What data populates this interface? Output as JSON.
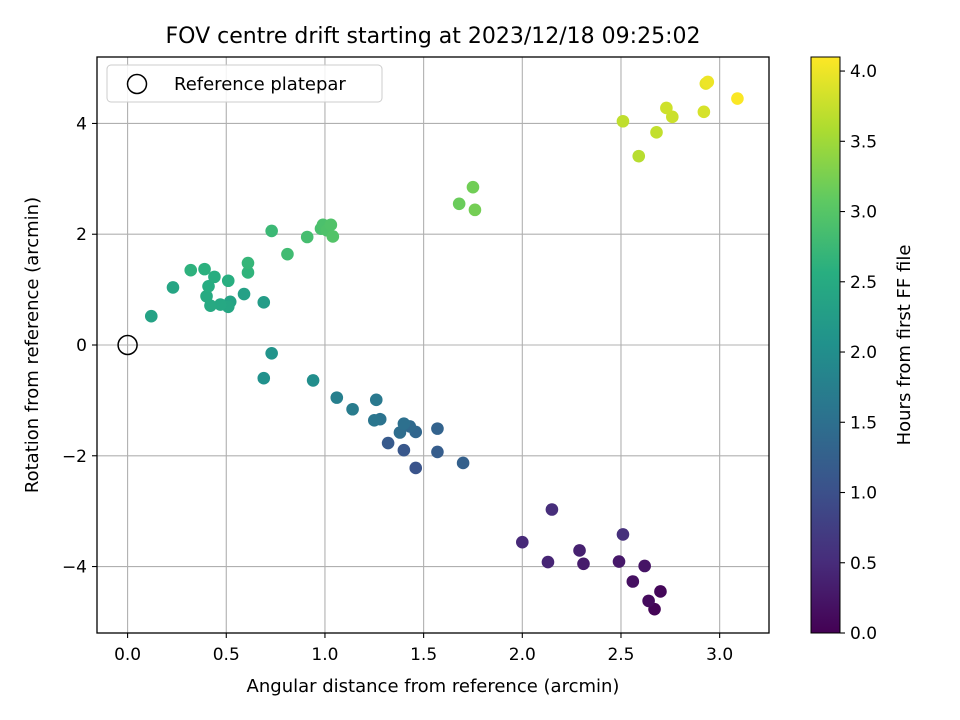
{
  "chart_data": {
    "type": "scatter",
    "title": "FOV centre drift starting at 2023/12/18 09:25:02",
    "xlabel": "Angular distance from reference (arcmin)",
    "ylabel": "Rotation from reference (arcmin)",
    "xlim": [
      -0.155,
      3.25
    ],
    "ylim": [
      -5.2,
      5.2
    ],
    "xticks": [
      0.0,
      0.5,
      1.0,
      1.5,
      2.0,
      2.5,
      3.0
    ],
    "xtick_labels": [
      "0.0",
      "0.5",
      "1.0",
      "1.5",
      "2.0",
      "2.5",
      "3.0"
    ],
    "yticks": [
      -4,
      -2,
      0,
      2,
      4
    ],
    "ytick_labels": [
      "−4",
      "−2",
      "0",
      "2",
      "4"
    ],
    "grid": true,
    "colormap": "viridis",
    "colormap_stops": [
      "#440154",
      "#472d7b",
      "#3b528b",
      "#2c728e",
      "#21918c",
      "#28ae80",
      "#5ec962",
      "#addc30",
      "#fde725"
    ],
    "colorbar": {
      "label": "Hours from first FF file",
      "range": [
        0.0,
        4.1
      ],
      "ticks": [
        0.0,
        0.5,
        1.0,
        1.5,
        2.0,
        2.5,
        3.0,
        3.5,
        4.0
      ],
      "tick_labels": [
        "0.0",
        "0.5",
        "1.0",
        "1.5",
        "2.0",
        "2.5",
        "3.0",
        "3.5",
        "4.0"
      ]
    },
    "legend": {
      "placement": "upper-left",
      "entries": [
        {
          "label": "Reference platepar",
          "marker": "open-circle"
        }
      ]
    },
    "reference_point": {
      "x": 0.0,
      "y": 0.0
    },
    "points": [
      {
        "x": 2.67,
        "y": -4.77,
        "c": 0.03
      },
      {
        "x": 2.7,
        "y": -4.45,
        "c": 0.07
      },
      {
        "x": 2.64,
        "y": -4.62,
        "c": 0.12
      },
      {
        "x": 2.56,
        "y": -4.27,
        "c": 0.17
      },
      {
        "x": 2.62,
        "y": -3.99,
        "c": 0.22
      },
      {
        "x": 2.49,
        "y": -3.91,
        "c": 0.27
      },
      {
        "x": 2.31,
        "y": -3.95,
        "c": 0.32
      },
      {
        "x": 2.29,
        "y": -3.71,
        "c": 0.37
      },
      {
        "x": 2.13,
        "y": -3.92,
        "c": 0.42
      },
      {
        "x": 2.0,
        "y": -3.56,
        "c": 0.47
      },
      {
        "x": 2.15,
        "y": -2.97,
        "c": 0.52
      },
      {
        "x": 2.51,
        "y": -3.42,
        "c": 0.56
      },
      {
        "x": 1.46,
        "y": -2.22,
        "c": 1.05
      },
      {
        "x": 1.4,
        "y": -1.9,
        "c": 1.1
      },
      {
        "x": 1.32,
        "y": -1.77,
        "c": 1.15
      },
      {
        "x": 1.57,
        "y": -1.93,
        "c": 1.2
      },
      {
        "x": 1.7,
        "y": -2.13,
        "c": 1.25
      },
      {
        "x": 1.57,
        "y": -1.51,
        "c": 1.3
      },
      {
        "x": 1.46,
        "y": -1.57,
        "c": 1.35
      },
      {
        "x": 1.43,
        "y": -1.47,
        "c": 1.4
      },
      {
        "x": 1.38,
        "y": -1.58,
        "c": 1.45
      },
      {
        "x": 1.4,
        "y": -1.42,
        "c": 1.5
      },
      {
        "x": 1.28,
        "y": -1.34,
        "c": 1.55
      },
      {
        "x": 1.25,
        "y": -1.36,
        "c": 1.6
      },
      {
        "x": 1.26,
        "y": -0.99,
        "c": 1.65
      },
      {
        "x": 1.14,
        "y": -1.16,
        "c": 1.7
      },
      {
        "x": 1.06,
        "y": -0.95,
        "c": 1.75
      },
      {
        "x": 0.94,
        "y": -0.64,
        "c": 2.0
      },
      {
        "x": 0.69,
        "y": -0.6,
        "c": 2.05
      },
      {
        "x": 0.73,
        "y": -0.15,
        "c": 2.1
      },
      {
        "x": 0.69,
        "y": 0.77,
        "c": 2.25
      },
      {
        "x": 0.59,
        "y": 0.92,
        "c": 2.32
      },
      {
        "x": 0.52,
        "y": 0.78,
        "c": 2.37
      },
      {
        "x": 0.51,
        "y": 0.69,
        "c": 2.42
      },
      {
        "x": 0.47,
        "y": 0.73,
        "c": 2.45
      },
      {
        "x": 0.42,
        "y": 0.71,
        "c": 2.48
      },
      {
        "x": 0.4,
        "y": 0.88,
        "c": 2.5
      },
      {
        "x": 0.41,
        "y": 1.06,
        "c": 2.52
      },
      {
        "x": 0.44,
        "y": 1.23,
        "c": 2.55
      },
      {
        "x": 0.51,
        "y": 1.16,
        "c": 2.57
      },
      {
        "x": 0.39,
        "y": 1.37,
        "c": 2.6
      },
      {
        "x": 0.32,
        "y": 1.35,
        "c": 2.62
      },
      {
        "x": 0.23,
        "y": 1.04,
        "c": 2.4
      },
      {
        "x": 0.12,
        "y": 0.52,
        "c": 2.35
      },
      {
        "x": 0.61,
        "y": 1.31,
        "c": 2.65
      },
      {
        "x": 0.61,
        "y": 1.48,
        "c": 2.7
      },
      {
        "x": 0.73,
        "y": 2.06,
        "c": 2.75
      },
      {
        "x": 0.81,
        "y": 1.64,
        "c": 2.8
      },
      {
        "x": 0.91,
        "y": 1.95,
        "c": 2.85
      },
      {
        "x": 0.98,
        "y": 2.1,
        "c": 2.88
      },
      {
        "x": 0.99,
        "y": 2.17,
        "c": 2.9
      },
      {
        "x": 1.01,
        "y": 2.07,
        "c": 2.93
      },
      {
        "x": 1.03,
        "y": 2.17,
        "c": 2.95
      },
      {
        "x": 1.04,
        "y": 1.96,
        "c": 2.97
      },
      {
        "x": 1.68,
        "y": 2.55,
        "c": 3.15
      },
      {
        "x": 1.75,
        "y": 2.85,
        "c": 3.2
      },
      {
        "x": 1.76,
        "y": 2.44,
        "c": 3.22
      },
      {
        "x": 2.59,
        "y": 3.41,
        "c": 3.65
      },
      {
        "x": 2.51,
        "y": 4.04,
        "c": 3.7
      },
      {
        "x": 2.68,
        "y": 3.84,
        "c": 3.72
      },
      {
        "x": 2.76,
        "y": 4.12,
        "c": 3.78
      },
      {
        "x": 2.73,
        "y": 4.28,
        "c": 3.8
      },
      {
        "x": 2.92,
        "y": 4.21,
        "c": 3.85
      },
      {
        "x": 2.93,
        "y": 4.72,
        "c": 3.95
      },
      {
        "x": 2.94,
        "y": 4.75,
        "c": 4.0
      },
      {
        "x": 3.09,
        "y": 4.45,
        "c": 4.08
      }
    ]
  }
}
